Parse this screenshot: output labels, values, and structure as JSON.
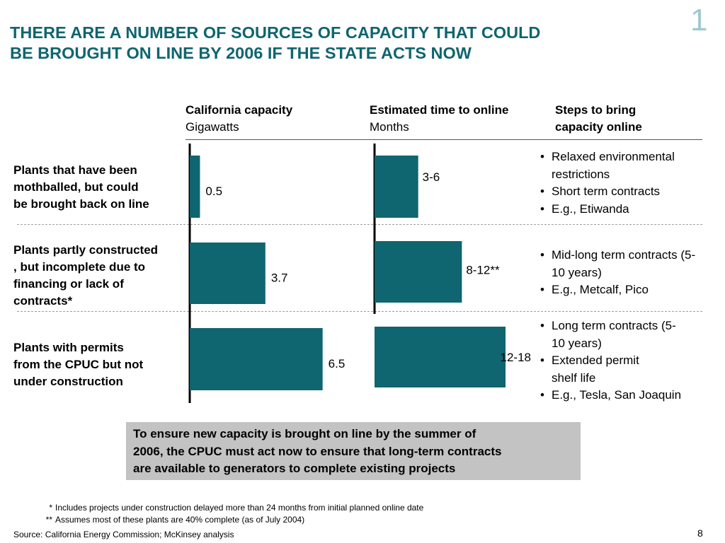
{
  "slide": {
    "corner_number": "1",
    "title_line1": "THERE ARE A NUMBER OF SOURCES OF CAPACITY THAT COULD",
    "title_line2": "BE BROUGHT ON LINE BY 2006 IF THE STATE ACTS NOW",
    "page_number": "8",
    "colors": {
      "accent": "#0f6570",
      "bar": "#0f6570",
      "callout_bg": "#c3c3c3"
    }
  },
  "headers": {
    "capacity_title": "California capacity",
    "capacity_unit": "Gigawatts",
    "time_title": "Estimated time to online",
    "time_unit": "Months",
    "steps_line1": "Steps to bring",
    "steps_line2": "capacity online"
  },
  "rows": [
    {
      "label_lines": [
        "Plants that have been",
        "mothballed, but could",
        "be brought back on line"
      ],
      "steps": [
        "Relaxed environmental restrictions",
        "Short term contracts",
        "E.g., Etiwanda"
      ]
    },
    {
      "label_lines": [
        "Plants partly constructed",
        ", but incomplete due to",
        "financing or lack of",
        "contracts*"
      ],
      "steps": [
        "Mid-long term contracts (5-10 years)",
        "E.g., Metcalf, Pico"
      ]
    },
    {
      "label_lines": [
        "Plants with permits",
        "from the CPUC but not",
        "under construction"
      ],
      "steps": [
        "Long term contracts (5-10 years)",
        "Extended permit shelf life",
        "E.g., Tesla, San Joaquin"
      ]
    }
  ],
  "chart_data": [
    {
      "type": "bar",
      "orientation": "horizontal",
      "categories": [
        "Plants that have been mothballed, but could be brought back on line",
        "Plants partly constructed , but incomplete due to financing or lack of contracts*",
        "Plants with permits from the CPUC but not under construction"
      ],
      "values": [
        0.5,
        3.7,
        6.5
      ],
      "value_labels": [
        "0.5",
        "3.7",
        "6.5"
      ],
      "title": "California capacity",
      "xlabel": "Gigawatts",
      "xlim": [
        0,
        7.1
      ],
      "grid": false
    },
    {
      "type": "bar",
      "orientation": "horizontal",
      "categories": [
        "Plants that have been mothballed, but could be brought back on line",
        "Plants partly constructed , but incomplete due to financing or lack of contracts*",
        "Plants with permits from the CPUC but not under construction"
      ],
      "ranges": [
        [
          3,
          6
        ],
        [
          8,
          12
        ],
        [
          12,
          18
        ]
      ],
      "values": [
        6,
        12,
        18
      ],
      "value_labels": [
        "3-6",
        "8-12**",
        "12-18"
      ],
      "title": "Estimated time to online",
      "xlabel": "Months",
      "xlim": [
        0,
        21.5
      ],
      "grid": false
    }
  ],
  "callout": {
    "line1": "To ensure new capacity is brought on line by the summer of",
    "line2": "2006, the CPUC must act now to ensure that long-term contracts",
    "line3": "are available to generators to complete existing projects"
  },
  "footnotes": [
    {
      "mark": "*",
      "text": "Includes projects under construction delayed more than 24 months from initial planned online date"
    },
    {
      "mark": "**",
      "text": "Assumes most of these plants are 40% complete (as of July 2004)"
    }
  ],
  "source": "Source: California Energy Commission; McKinsey analysis"
}
